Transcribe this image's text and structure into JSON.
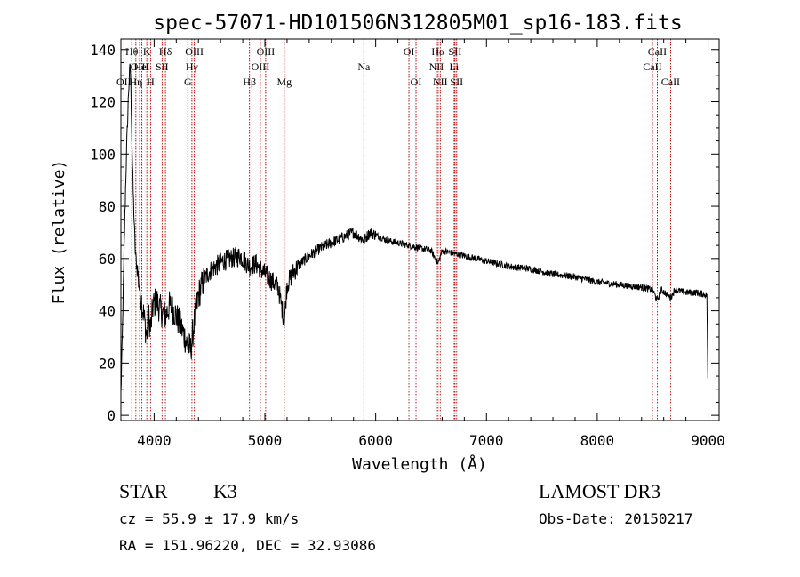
{
  "chart_data": {
    "type": "line",
    "title": "spec-57071-HD101506N312805M01_sp16-183.fits",
    "xlabel": "Wavelength (Å)",
    "ylabel": "Flux (relative)",
    "xlim": [
      3700,
      9100
    ],
    "ylim": [
      -2,
      144
    ],
    "x_ticks": [
      4000,
      5000,
      6000,
      7000,
      8000,
      9000
    ],
    "y_ticks": [
      0,
      20,
      40,
      60,
      80,
      100,
      120,
      140
    ],
    "grid": false,
    "series": [
      {
        "name": "flux",
        "color": "#000000",
        "anchors": [
          [
            3700,
            8
          ],
          [
            3710,
            25
          ],
          [
            3720,
            45
          ],
          [
            3735,
            75
          ],
          [
            3750,
            100
          ],
          [
            3770,
            125
          ],
          [
            3785,
            135
          ],
          [
            3795,
            115
          ],
          [
            3805,
            95
          ],
          [
            3815,
            80
          ],
          [
            3830,
            62
          ],
          [
            3850,
            55
          ],
          [
            3870,
            48
          ],
          [
            3900,
            40
          ],
          [
            3933,
            30
          ],
          [
            3950,
            38
          ],
          [
            3968,
            33
          ],
          [
            3990,
            42
          ],
          [
            4020,
            44
          ],
          [
            4060,
            40
          ],
          [
            4102,
            38
          ],
          [
            4140,
            42
          ],
          [
            4180,
            40
          ],
          [
            4220,
            36
          ],
          [
            4260,
            32
          ],
          [
            4300,
            27
          ],
          [
            4330,
            25
          ],
          [
            4360,
            35
          ],
          [
            4400,
            46
          ],
          [
            4450,
            52
          ],
          [
            4500,
            55
          ],
          [
            4560,
            57
          ],
          [
            4620,
            59
          ],
          [
            4700,
            60
          ],
          [
            4780,
            61
          ],
          [
            4861,
            57
          ],
          [
            4920,
            58
          ],
          [
            4980,
            55
          ],
          [
            5050,
            52
          ],
          [
            5120,
            49
          ],
          [
            5175,
            36
          ],
          [
            5200,
            50
          ],
          [
            5260,
            55
          ],
          [
            5320,
            58
          ],
          [
            5400,
            61
          ],
          [
            5500,
            64
          ],
          [
            5600,
            66
          ],
          [
            5700,
            68
          ],
          [
            5800,
            70
          ],
          [
            5893,
            67
          ],
          [
            5950,
            70
          ],
          [
            6000,
            69
          ],
          [
            6100,
            67
          ],
          [
            6200,
            66
          ],
          [
            6300,
            65
          ],
          [
            6400,
            64
          ],
          [
            6500,
            63
          ],
          [
            6563,
            58
          ],
          [
            6600,
            63
          ],
          [
            6700,
            62
          ],
          [
            6800,
            61
          ],
          [
            7000,
            59
          ],
          [
            7200,
            57
          ],
          [
            7400,
            56
          ],
          [
            7600,
            54
          ],
          [
            7800,
            53
          ],
          [
            8000,
            51
          ],
          [
            8200,
            50
          ],
          [
            8400,
            49
          ],
          [
            8500,
            48
          ],
          [
            8542,
            44
          ],
          [
            8580,
            48
          ],
          [
            8662,
            45
          ],
          [
            8700,
            48
          ],
          [
            8800,
            47
          ],
          [
            8900,
            47
          ],
          [
            8990,
            46
          ],
          [
            9000,
            5
          ]
        ]
      }
    ],
    "line_features": [
      {
        "wavelength": 3727,
        "label": "OII",
        "row": 3
      },
      {
        "wavelength": 3798,
        "label": "Hθ",
        "row": 1
      },
      {
        "wavelength": 3835,
        "label": "Hη",
        "row": 3
      },
      {
        "wavelength": 3869,
        "label": "OIII",
        "row": 2
      },
      {
        "wavelength": 3889,
        "label": "HeI",
        "row": 2
      },
      {
        "wavelength": 3934,
        "label": "K",
        "row": 1
      },
      {
        "wavelength": 3968,
        "label": "H",
        "row": 3
      },
      {
        "wavelength": 4072,
        "label": "SII",
        "row": 2
      },
      {
        "wavelength": 4102,
        "label": "Hδ",
        "row": 1
      },
      {
        "wavelength": 4304,
        "label": "G",
        "row": 3
      },
      {
        "wavelength": 4341,
        "label": "Hγ",
        "row": 2
      },
      {
        "wavelength": 4363,
        "label": "OIII",
        "row": 1
      },
      {
        "wavelength": 4861,
        "label": "Hβ",
        "row": 3
      },
      {
        "wavelength": 4959,
        "label": "OIII",
        "row": 2
      },
      {
        "wavelength": 5007,
        "label": "OIII",
        "row": 1
      },
      {
        "wavelength": 5175,
        "label": "Mg",
        "row": 3
      },
      {
        "wavelength": 5893,
        "label": "Na",
        "row": 2
      },
      {
        "wavelength": 6300,
        "label": "OI",
        "row": 1
      },
      {
        "wavelength": 6364,
        "label": "OI",
        "row": 3
      },
      {
        "wavelength": 6548,
        "label": "NII",
        "row": 2
      },
      {
        "wavelength": 6563,
        "label": "Hα",
        "row": 1
      },
      {
        "wavelength": 6583,
        "label": "NII",
        "row": 3
      },
      {
        "wavelength": 6708,
        "label": "Li",
        "row": 2
      },
      {
        "wavelength": 6716,
        "label": "SII",
        "row": 1
      },
      {
        "wavelength": 6731,
        "label": "SII",
        "row": 3
      },
      {
        "wavelength": 8498,
        "label": "CaII",
        "row": 2
      },
      {
        "wavelength": 8542,
        "label": "CaII",
        "row": 1
      },
      {
        "wavelength": 8662,
        "label": "CaII",
        "row": 3
      }
    ],
    "feature_line_color": "#b30000"
  },
  "info": {
    "object_class": "STAR",
    "subclass": "K3",
    "survey": "LAMOST DR3",
    "redshift": "cz = 55.9 ± 17.9 km/s",
    "obs_date": "Obs-Date: 20150217",
    "coords": "RA = 151.96220, DEC =  32.93086"
  }
}
